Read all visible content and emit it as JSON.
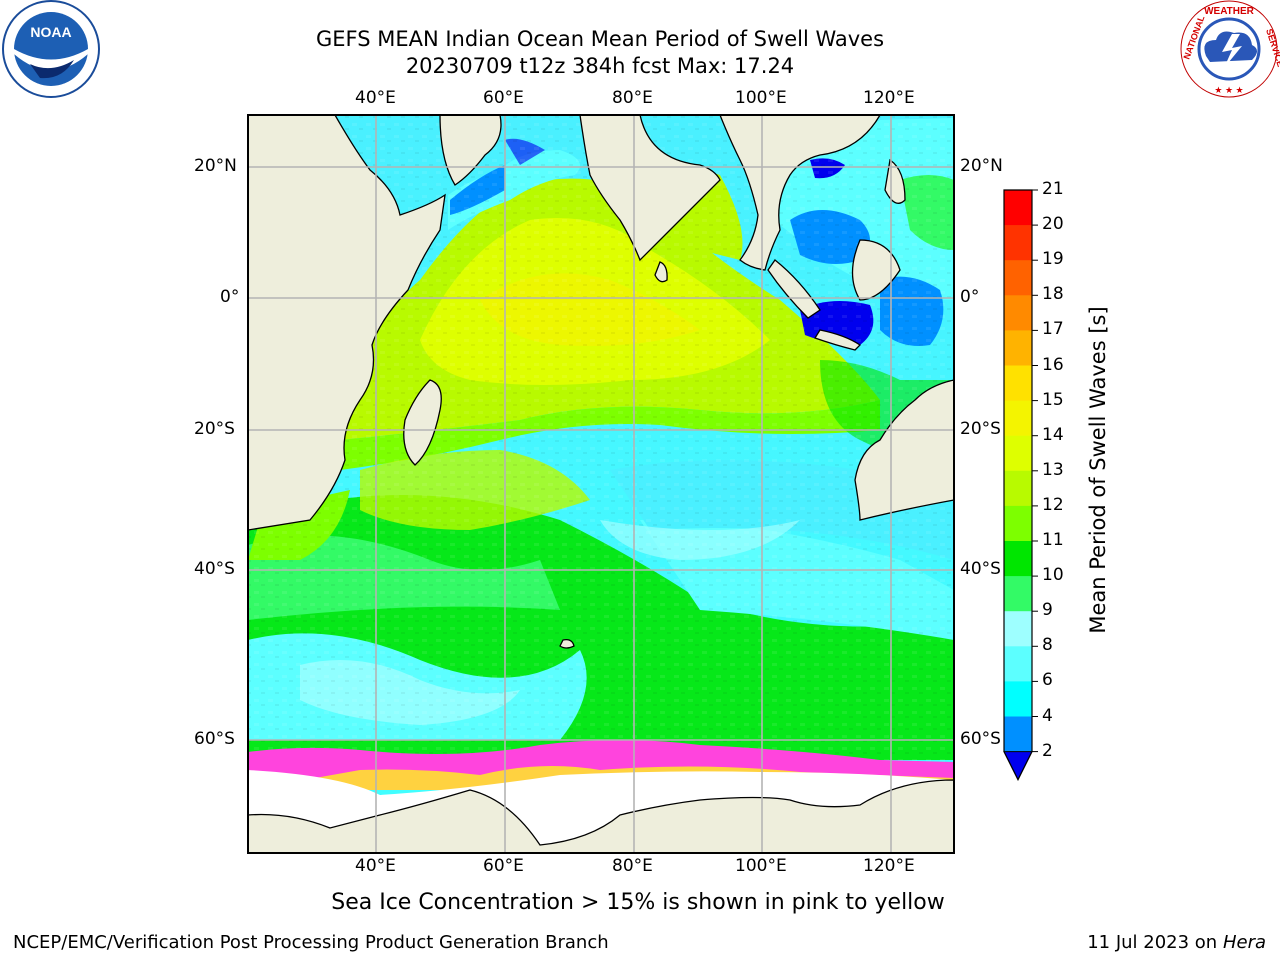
{
  "title": {
    "line1": "GEFS MEAN Indian Ocean Mean Period of Swell Waves",
    "line2": "20230709 t12z 384h fcst   Max: 17.24"
  },
  "map": {
    "lon_ticks_top": [
      "40°E",
      "60°E",
      "80°E",
      "100°E",
      "120°E"
    ],
    "lon_ticks_bottom": [
      "40°E",
      "60°E",
      "80°E",
      "100°E",
      "120°E"
    ],
    "lat_ticks_left": [
      "20°N",
      "0°",
      "20°S",
      "40°S",
      "60°S"
    ],
    "lat_ticks_right": [
      "20°N",
      "0°",
      "20°S",
      "40°S",
      "60°S"
    ],
    "colors": {
      "land": "#eeeedc",
      "grid": "#b4b4b4",
      "ice_pink": "#ff44dd",
      "ice_yellow": "#ffd240",
      "antarctic_white": "#ffffff"
    }
  },
  "colorbar": {
    "title": "Mean Period of Swell Waves [s]",
    "levels": [
      "21",
      "20",
      "19",
      "18",
      "17",
      "16",
      "15",
      "14",
      "13",
      "12",
      "11",
      "10",
      "9",
      "8",
      "6",
      "4",
      "2"
    ],
    "colors": [
      "#ff0000",
      "#ff3300",
      "#ff6200",
      "#ff8a00",
      "#ffb300",
      "#ffe100",
      "#f4f400",
      "#deff00",
      "#b8fa00",
      "#7dff00",
      "#00e600",
      "#33fa66",
      "#9effff",
      "#5cffff",
      "#00ffff",
      "#0090ff"
    ],
    "extend_color": "#0000ee"
  },
  "note": "Sea Ice Concentration > 15% is shown in pink to yellow",
  "footer": {
    "left": "NCEP/EMC/Verification Post Processing Product Generation Branch",
    "right_date": "11 Jul 2023 on ",
    "right_host": "Hera"
  },
  "logos": {
    "noaa_text": "NOAA",
    "nws_text": "NATIONAL WEATHER SERVICE"
  }
}
